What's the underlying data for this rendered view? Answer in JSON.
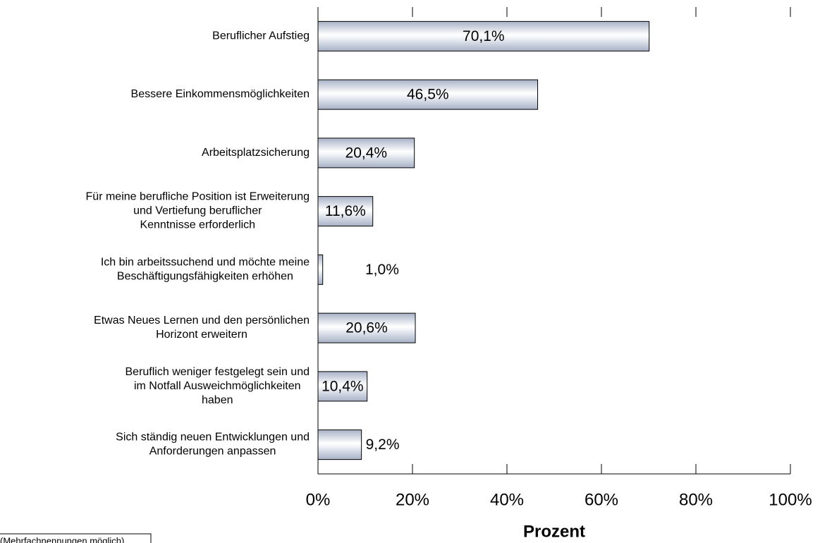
{
  "chart_data": {
    "type": "barh",
    "categories": [
      "Beruflicher Aufstieg",
      "Bessere Einkommensmöglichkeiten",
      "Arbeitsplatzsicherung",
      "Für meine berufliche Position ist Erweiterung\nund Vertiefung beruflicher\nKenntnisse erforderlich",
      "Ich bin arbeitssuchend und möchte meine\nBeschäftigungsfähigkeiten erhöhen",
      "Etwas Neues Lernen und den persönlichen\nHorizont erweitern",
      "Beruflich weniger festgelegt sein und\nim Notfall Ausweichmöglichkeiten\nhaben",
      "Sich ständig neuen Entwicklungen und\nAnforderungen anpassen"
    ],
    "values": [
      70.1,
      46.5,
      20.4,
      11.6,
      1.0,
      20.6,
      10.4,
      9.2
    ],
    "value_labels": [
      "70,1%",
      "46,5%",
      "20,4%",
      "11,6%",
      "1,0%",
      "20,6%",
      "10,4%",
      "9,2%"
    ],
    "color": "#a7b1c6",
    "xlabel": "Prozent",
    "xlim": [
      0,
      100
    ],
    "xticks": [
      {
        "value": 0,
        "label": "0%"
      },
      {
        "value": 20,
        "label": "20%"
      },
      {
        "value": 40,
        "label": "40%"
      },
      {
        "value": 60,
        "label": "60%"
      },
      {
        "value": 80,
        "label": "80%"
      },
      {
        "value": 100,
        "label": "100%"
      }
    ],
    "note": "(Mehrfachnennungen möglich)"
  }
}
